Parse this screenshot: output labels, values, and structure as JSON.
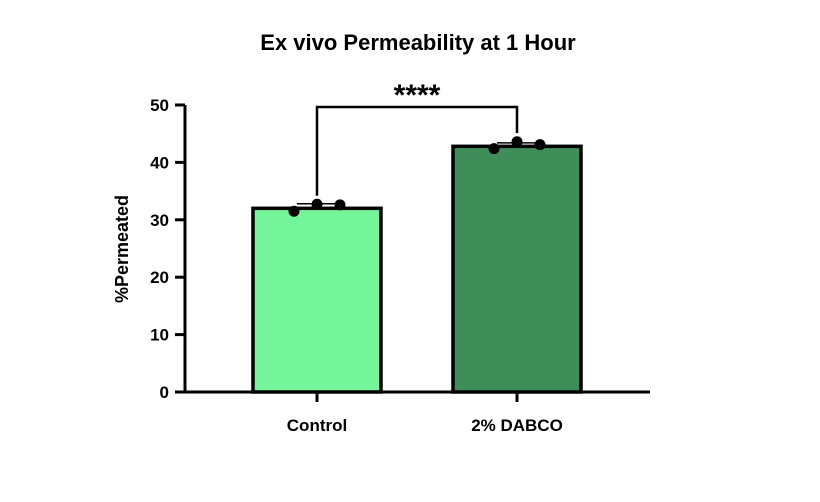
{
  "chart_data": {
    "type": "bar",
    "title": "Ex vivo Permeability at 1 Hour",
    "xlabel": "",
    "ylabel": "%Permeated",
    "ylim": [
      0,
      50
    ],
    "yticks": [
      0,
      10,
      20,
      30,
      40,
      50
    ],
    "categories": [
      "Control",
      "2% DABCO"
    ],
    "values": [
      32.0,
      42.8
    ],
    "errors": [
      0.8,
      0.6
    ],
    "points": [
      [
        31.5,
        32.7,
        32.6
      ],
      [
        42.4,
        43.6,
        43.1
      ]
    ],
    "bar_colors": [
      "#74f59b",
      "#3f8e5a"
    ],
    "significance": {
      "from": 0,
      "to": 1,
      "label": "****"
    },
    "grid": false,
    "legend": "none"
  }
}
